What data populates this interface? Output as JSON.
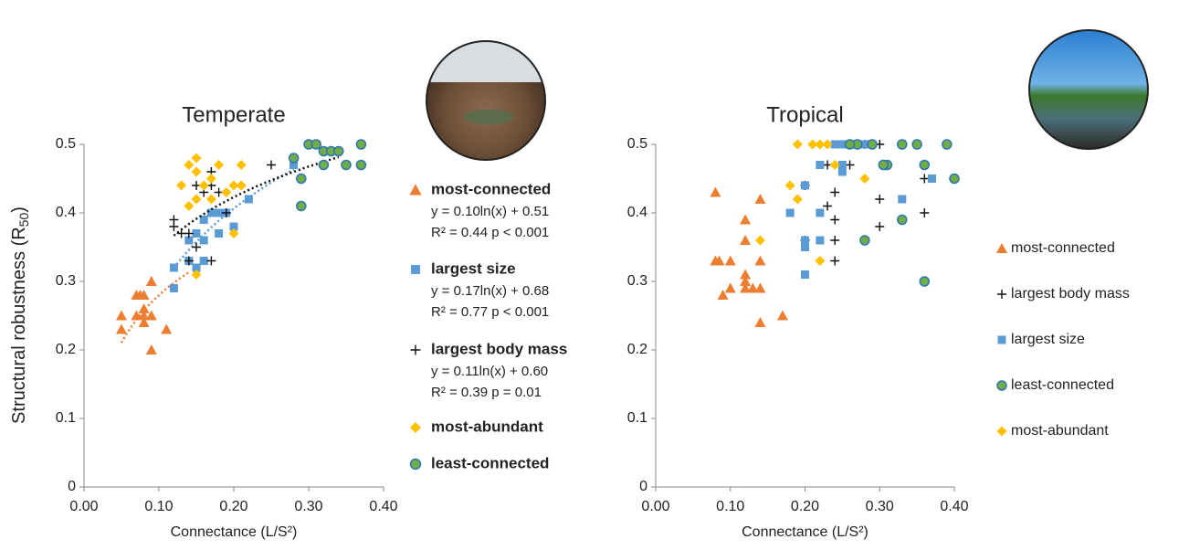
{
  "chart_data": [
    {
      "type": "scatter",
      "title": "Temperate",
      "x_label": "Connectance (L/S²)",
      "y_label": "Structural robustness (R",
      "y_label_sub": "50",
      "y_label_end": ")",
      "xlim": [
        0,
        0.4
      ],
      "ylim": [
        0,
        0.5
      ],
      "xticks": [
        {
          "value": 0,
          "label": "0.00"
        },
        {
          "value": 0.1,
          "label": "0.10"
        },
        {
          "value": 0.2,
          "label": "0.20"
        },
        {
          "value": 0.3,
          "label": "0.30"
        },
        {
          "value": 0.4,
          "label": "0.40"
        }
      ],
      "yticks": [
        0,
        0.1,
        0.2,
        0.3,
        0.4,
        0.5
      ],
      "legend": "right",
      "legend_bold": true,
      "series": [
        {
          "name": "most-connected",
          "color": "#ED7D31",
          "marker": "triangle",
          "equation": "y = 0.10ln(x) + 0.51",
          "stats": "R² = 0.44  p < 0.001",
          "fit": {
            "slope": 0.1,
            "intercept": 0.51,
            "x_from": 0.05,
            "x_to": 0.14
          },
          "x": [
            0.05,
            0.05,
            0.07,
            0.07,
            0.08,
            0.08,
            0.08,
            0.09,
            0.09,
            0.11,
            0.09,
            0.075,
            0.08
          ],
          "values": [
            0.25,
            0.23,
            0.28,
            0.25,
            0.26,
            0.24,
            0.28,
            0.3,
            0.2,
            0.23,
            0.25,
            0.28,
            0.25
          ]
        },
        {
          "name": "largest size",
          "color": "#5B9BD5",
          "marker": "square",
          "equation": "y = 0.17ln(x) + 0.68",
          "stats": "R² = 0.77  p < 0.001",
          "fit": {
            "slope": 0.17,
            "intercept": 0.68,
            "x_from": 0.12,
            "x_to": 0.28
          },
          "x": [
            0.12,
            0.12,
            0.14,
            0.14,
            0.15,
            0.15,
            0.16,
            0.16,
            0.17,
            0.18,
            0.18,
            0.19,
            0.2,
            0.22,
            0.16,
            0.28
          ],
          "values": [
            0.29,
            0.32,
            0.36,
            0.33,
            0.32,
            0.37,
            0.39,
            0.36,
            0.4,
            0.4,
            0.37,
            0.4,
            0.38,
            0.42,
            0.33,
            0.47
          ]
        },
        {
          "name": "largest body mass",
          "color": "#111111",
          "marker": "plus",
          "equation": "y = 0.11ln(x) + 0.60",
          "stats": "R² = 0.39  p = 0.01",
          "fit": {
            "slope": 0.11,
            "intercept": 0.6,
            "x_from": 0.12,
            "x_to": 0.34
          },
          "x": [
            0.12,
            0.12,
            0.13,
            0.14,
            0.15,
            0.15,
            0.16,
            0.17,
            0.17,
            0.18,
            0.19,
            0.25,
            0.17,
            0.14
          ],
          "values": [
            0.39,
            0.38,
            0.37,
            0.33,
            0.35,
            0.44,
            0.43,
            0.46,
            0.44,
            0.43,
            0.4,
            0.47,
            0.33,
            0.37
          ]
        },
        {
          "name": "most-abundant",
          "color": "#FFC000",
          "marker": "diamond",
          "x": [
            0.14,
            0.15,
            0.15,
            0.13,
            0.14,
            0.15,
            0.15,
            0.16,
            0.17,
            0.18,
            0.19,
            0.2,
            0.2,
            0.21,
            0.21,
            0.17
          ],
          "values": [
            0.47,
            0.48,
            0.46,
            0.44,
            0.41,
            0.42,
            0.31,
            0.44,
            0.42,
            0.47,
            0.43,
            0.44,
            0.37,
            0.47,
            0.44,
            0.45
          ]
        },
        {
          "name": "least-connected",
          "color": "#70AD47",
          "marker": "circle",
          "x": [
            0.28,
            0.29,
            0.29,
            0.3,
            0.31,
            0.32,
            0.32,
            0.33,
            0.34,
            0.35,
            0.37,
            0.37
          ],
          "values": [
            0.48,
            0.41,
            0.45,
            0.5,
            0.5,
            0.47,
            0.49,
            0.49,
            0.49,
            0.47,
            0.5,
            0.47
          ]
        }
      ]
    },
    {
      "type": "scatter",
      "title": "Tropical",
      "x_label": "Connectance (L/S²)",
      "xlim": [
        0,
        0.4
      ],
      "ylim": [
        0,
        0.5
      ],
      "xticks": [
        {
          "value": 0,
          "label": "0.00"
        },
        {
          "value": 0.1,
          "label": "0.10"
        },
        {
          "value": 0.2,
          "label": "0.20"
        },
        {
          "value": 0.3,
          "label": "0.30"
        },
        {
          "value": 0.4,
          "label": "0.40"
        }
      ],
      "yticks": [
        0,
        0.1,
        0.2,
        0.3,
        0.4,
        0.5
      ],
      "legend": "right",
      "legend_bold": false,
      "series": [
        {
          "name": "most-connected",
          "color": "#ED7D31",
          "marker": "triangle",
          "x": [
            0.08,
            0.085,
            0.08,
            0.09,
            0.1,
            0.1,
            0.12,
            0.12,
            0.12,
            0.12,
            0.12,
            0.13,
            0.14,
            0.14,
            0.14,
            0.14,
            0.17
          ],
          "values": [
            0.33,
            0.33,
            0.43,
            0.28,
            0.29,
            0.33,
            0.31,
            0.3,
            0.29,
            0.36,
            0.39,
            0.29,
            0.42,
            0.33,
            0.29,
            0.24,
            0.25
          ]
        },
        {
          "name": "largest body mass",
          "color": "#111111",
          "marker": "plus",
          "x": [
            0.2,
            0.2,
            0.23,
            0.23,
            0.24,
            0.24,
            0.24,
            0.24,
            0.26,
            0.28,
            0.3,
            0.3,
            0.3,
            0.36,
            0.36
          ],
          "values": [
            0.36,
            0.44,
            0.41,
            0.47,
            0.43,
            0.39,
            0.36,
            0.33,
            0.47,
            0.5,
            0.5,
            0.42,
            0.38,
            0.45,
            0.4
          ]
        },
        {
          "name": "largest size",
          "color": "#5B9BD5",
          "marker": "square",
          "x": [
            0.18,
            0.2,
            0.2,
            0.2,
            0.2,
            0.22,
            0.22,
            0.22,
            0.24,
            0.25,
            0.25,
            0.25,
            0.26,
            0.28,
            0.33,
            0.37
          ],
          "values": [
            0.4,
            0.44,
            0.36,
            0.35,
            0.31,
            0.47,
            0.4,
            0.36,
            0.5,
            0.5,
            0.47,
            0.46,
            0.5,
            0.5,
            0.42,
            0.45
          ]
        },
        {
          "name": "least-connected",
          "color": "#70AD47",
          "marker": "circle",
          "x": [
            0.27,
            0.26,
            0.28,
            0.29,
            0.33,
            0.31,
            0.305,
            0.33,
            0.35,
            0.36,
            0.36,
            0.39,
            0.4
          ],
          "values": [
            0.5,
            0.5,
            0.36,
            0.5,
            0.5,
            0.47,
            0.47,
            0.39,
            0.5,
            0.47,
            0.3,
            0.5,
            0.45
          ]
        },
        {
          "name": "most-abundant",
          "color": "#FFC000",
          "marker": "diamond",
          "x": [
            0.18,
            0.19,
            0.19,
            0.21,
            0.22,
            0.23,
            0.24,
            0.14,
            0.22,
            0.28
          ],
          "values": [
            0.44,
            0.42,
            0.5,
            0.5,
            0.5,
            0.5,
            0.47,
            0.36,
            0.33,
            0.45
          ]
        }
      ]
    }
  ]
}
